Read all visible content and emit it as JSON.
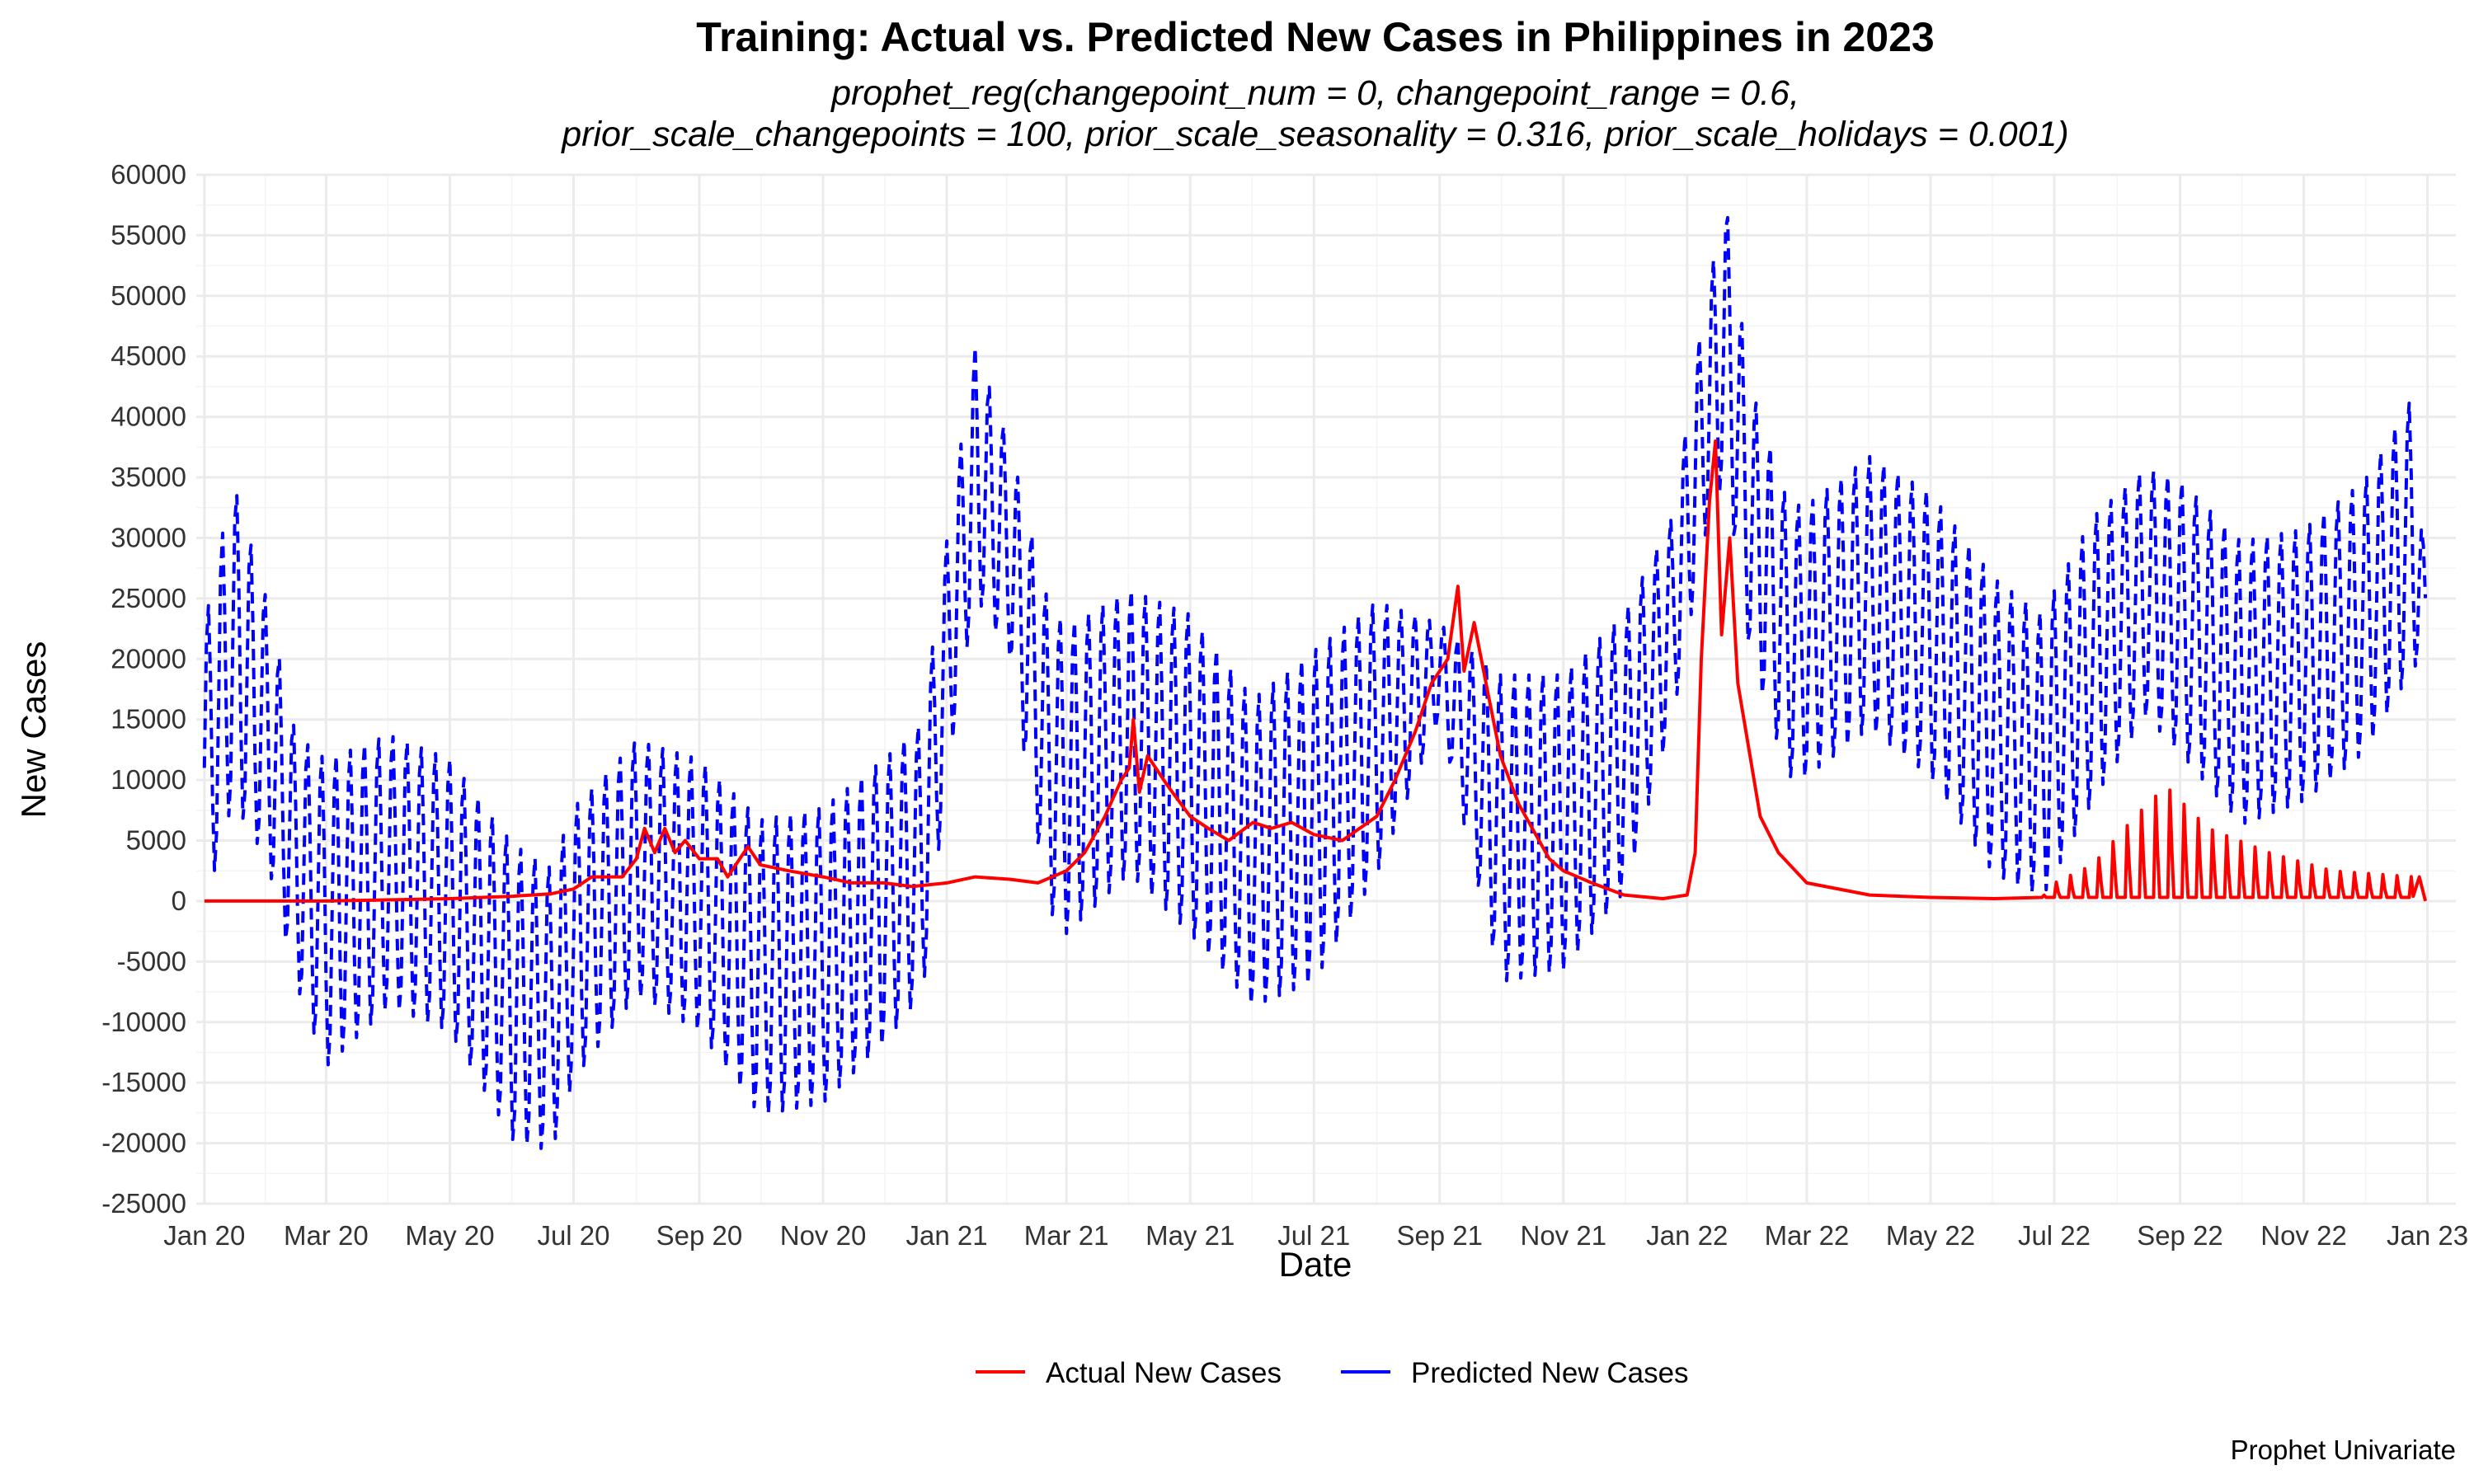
{
  "chart_data": {
    "type": "line",
    "title": "Training: Actual vs. Predicted New Cases in Philippines in 2023",
    "subtitle_lines": [
      "prophet_reg(changepoint_num = 0, changepoint_range = 0.6,",
      "prior_scale_changepoints = 100, prior_scale_seasonality = 0.316, prior_scale_holidays = 0.001)"
    ],
    "xlabel": "Date",
    "ylabel": "New Cases",
    "caption": "Prophet Univariate",
    "x_range": [
      "2019-12-28",
      "2023-01-15"
    ],
    "ylim": [
      -25000,
      60000
    ],
    "y_ticks": [
      -25000,
      -20000,
      -15000,
      -10000,
      -5000,
      0,
      5000,
      10000,
      15000,
      20000,
      25000,
      30000,
      35000,
      40000,
      45000,
      50000,
      55000,
      60000
    ],
    "x_ticks": [
      {
        "date": "2020-01-01",
        "label": "Jan 20"
      },
      {
        "date": "2020-03-01",
        "label": "Mar 20"
      },
      {
        "date": "2020-05-01",
        "label": "May 20"
      },
      {
        "date": "2020-07-01",
        "label": "Jul 20"
      },
      {
        "date": "2020-09-01",
        "label": "Sep 20"
      },
      {
        "date": "2020-11-01",
        "label": "Nov 20"
      },
      {
        "date": "2021-01-01",
        "label": "Jan 21"
      },
      {
        "date": "2021-03-01",
        "label": "Mar 21"
      },
      {
        "date": "2021-05-01",
        "label": "May 21"
      },
      {
        "date": "2021-07-01",
        "label": "Jul 21"
      },
      {
        "date": "2021-09-01",
        "label": "Sep 21"
      },
      {
        "date": "2021-11-01",
        "label": "Nov 21"
      },
      {
        "date": "2022-01-01",
        "label": "Jan 22"
      },
      {
        "date": "2022-03-01",
        "label": "Mar 22"
      },
      {
        "date": "2022-05-01",
        "label": "May 22"
      },
      {
        "date": "2022-07-01",
        "label": "Jul 22"
      },
      {
        "date": "2022-09-01",
        "label": "Sep 22"
      },
      {
        "date": "2022-11-01",
        "label": "Nov 22"
      },
      {
        "date": "2023-01-01",
        "label": "Jan 23"
      }
    ],
    "grid": true,
    "legend_position": "bottom",
    "series": [
      {
        "name": "Actual New Cases",
        "color": "#ff0000",
        "line_style": "solid",
        "spikes": [
          {
            "from": "2022-06-25",
            "to": "2022-12-25",
            "period_days": 7,
            "base": 300,
            "peak": [
              [
                "2022-06-25",
                1000
              ],
              [
                "2022-07-20",
                3000
              ],
              [
                "2022-08-10",
                7000
              ],
              [
                "2022-08-25",
                9500
              ],
              [
                "2022-09-15",
                6000
              ],
              [
                "2022-10-15",
                4000
              ],
              [
                "2022-11-15",
                2500
              ],
              [
                "2022-12-25",
                2000
              ]
            ]
          }
        ],
        "points": [
          [
            "2020-01-01",
            0
          ],
          [
            "2020-03-01",
            0
          ],
          [
            "2020-05-01",
            200
          ],
          [
            "2020-06-01",
            400
          ],
          [
            "2020-06-20",
            600
          ],
          [
            "2020-07-01",
            1000
          ],
          [
            "2020-07-10",
            2000
          ],
          [
            "2020-07-25",
            2000
          ],
          [
            "2020-08-01",
            3500
          ],
          [
            "2020-08-05",
            6000
          ],
          [
            "2020-08-10",
            4000
          ],
          [
            "2020-08-15",
            6000
          ],
          [
            "2020-08-20",
            4000
          ],
          [
            "2020-08-25",
            5000
          ],
          [
            "2020-09-01",
            3500
          ],
          [
            "2020-09-10",
            3500
          ],
          [
            "2020-09-15",
            2000
          ],
          [
            "2020-09-25",
            4500
          ],
          [
            "2020-10-01",
            3000
          ],
          [
            "2020-10-15",
            2500
          ],
          [
            "2020-11-01",
            2000
          ],
          [
            "2020-11-15",
            1500
          ],
          [
            "2020-12-01",
            1500
          ],
          [
            "2020-12-15",
            1200
          ],
          [
            "2021-01-01",
            1500
          ],
          [
            "2021-01-15",
            2000
          ],
          [
            "2021-02-01",
            1800
          ],
          [
            "2021-02-15",
            1500
          ],
          [
            "2021-03-01",
            2500
          ],
          [
            "2021-03-10",
            4000
          ],
          [
            "2021-03-20",
            7000
          ],
          [
            "2021-03-28",
            10000
          ],
          [
            "2021-04-01",
            11000
          ],
          [
            "2021-04-03",
            15000
          ],
          [
            "2021-04-06",
            9000
          ],
          [
            "2021-04-10",
            12000
          ],
          [
            "2021-04-20",
            9500
          ],
          [
            "2021-05-01",
            7000
          ],
          [
            "2021-05-10",
            6000
          ],
          [
            "2021-05-20",
            5000
          ],
          [
            "2021-06-01",
            6500
          ],
          [
            "2021-06-10",
            6000
          ],
          [
            "2021-06-20",
            6500
          ],
          [
            "2021-07-01",
            5500
          ],
          [
            "2021-07-15",
            5000
          ],
          [
            "2021-08-01",
            7000
          ],
          [
            "2021-08-10",
            10000
          ],
          [
            "2021-08-20",
            14000
          ],
          [
            "2021-08-28",
            18000
          ],
          [
            "2021-09-05",
            20000
          ],
          [
            "2021-09-10",
            26000
          ],
          [
            "2021-09-13",
            19000
          ],
          [
            "2021-09-18",
            23000
          ],
          [
            "2021-09-25",
            17000
          ],
          [
            "2021-10-01",
            12000
          ],
          [
            "2021-10-10",
            8000
          ],
          [
            "2021-10-20",
            5000
          ],
          [
            "2021-10-25",
            3500
          ],
          [
            "2021-11-01",
            2500
          ],
          [
            "2021-11-15",
            1500
          ],
          [
            "2021-12-01",
            500
          ],
          [
            "2021-12-20",
            200
          ],
          [
            "2022-01-01",
            500
          ],
          [
            "2022-01-05",
            4000
          ],
          [
            "2022-01-08",
            20000
          ],
          [
            "2022-01-12",
            33000
          ],
          [
            "2022-01-15",
            38000
          ],
          [
            "2022-01-18",
            22000
          ],
          [
            "2022-01-22",
            30000
          ],
          [
            "2022-01-26",
            18000
          ],
          [
            "2022-02-01",
            12000
          ],
          [
            "2022-02-06",
            7000
          ],
          [
            "2022-02-15",
            4000
          ],
          [
            "2022-03-01",
            1500
          ],
          [
            "2022-04-01",
            500
          ],
          [
            "2022-05-01",
            300
          ],
          [
            "2022-06-01",
            200
          ],
          [
            "2022-06-25",
            300
          ],
          [
            "2022-12-25",
            400
          ],
          [
            "2022-12-28",
            2000
          ],
          [
            "2022-12-31",
            0
          ]
        ]
      },
      {
        "name": "Predicted New Cases",
        "color": "#0000ff",
        "line_style": "dashed",
        "oscillation_period_days": 7,
        "start": "2020-01-01",
        "end": "2022-12-31",
        "envelope": [
          [
            "2020-01-01",
            23000,
            -1000
          ],
          [
            "2020-01-15",
            35000,
            8000
          ],
          [
            "2020-02-01",
            25000,
            3000
          ],
          [
            "2020-02-15",
            14000,
            -7000
          ],
          [
            "2020-03-01",
            12000,
            -14000
          ],
          [
            "2020-04-01",
            14000,
            -9000
          ],
          [
            "2020-05-01",
            12000,
            -11000
          ],
          [
            "2020-06-01",
            5000,
            -20000
          ],
          [
            "2020-06-20",
            3000,
            -21000
          ],
          [
            "2020-07-01",
            8000,
            -15000
          ],
          [
            "2020-08-01",
            13500,
            -8000
          ],
          [
            "2020-09-01",
            12000,
            -11000
          ],
          [
            "2020-10-01",
            7000,
            -18000
          ],
          [
            "2020-11-01",
            8000,
            -17000
          ],
          [
            "2020-12-01",
            12000,
            -12000
          ],
          [
            "2020-12-20",
            15000,
            -8000
          ],
          [
            "2021-01-01",
            30000,
            10000
          ],
          [
            "2021-01-15",
            46000,
            25000
          ],
          [
            "2021-02-01",
            38000,
            20000
          ],
          [
            "2021-02-20",
            25000,
            -1000
          ],
          [
            "2021-03-01",
            23000,
            -3000
          ],
          [
            "2021-04-01",
            26000,
            2000
          ],
          [
            "2021-05-01",
            24000,
            -3000
          ],
          [
            "2021-06-01",
            17000,
            -9000
          ],
          [
            "2021-07-01",
            21000,
            -7000
          ],
          [
            "2021-08-01",
            25000,
            2000
          ],
          [
            "2021-09-01",
            23000,
            15000
          ],
          [
            "2021-10-01",
            19000,
            -7000
          ],
          [
            "2021-11-01",
            19000,
            -6000
          ],
          [
            "2021-12-01",
            24000,
            500
          ],
          [
            "2021-12-25",
            32000,
            15000
          ],
          [
            "2022-01-10",
            50000,
            30000
          ],
          [
            "2022-01-20",
            58000,
            35000
          ],
          [
            "2022-02-01",
            43000,
            20000
          ],
          [
            "2022-02-20",
            33000,
            10000
          ],
          [
            "2022-03-01",
            33000,
            10000
          ],
          [
            "2022-04-01",
            37000,
            14000
          ],
          [
            "2022-05-01",
            34000,
            10000
          ],
          [
            "2022-06-01",
            27000,
            2000
          ],
          [
            "2022-06-25",
            24000,
            0
          ],
          [
            "2022-07-20",
            32000,
            8000
          ],
          [
            "2022-08-15",
            36000,
            15000
          ],
          [
            "2022-09-01",
            35000,
            12000
          ],
          [
            "2022-10-01",
            30000,
            6000
          ],
          [
            "2022-11-01",
            31000,
            8000
          ],
          [
            "2022-12-01",
            35000,
            12000
          ],
          [
            "2022-12-25",
            42000,
            19000
          ],
          [
            "2022-12-31",
            27000,
            20000
          ]
        ]
      }
    ]
  }
}
